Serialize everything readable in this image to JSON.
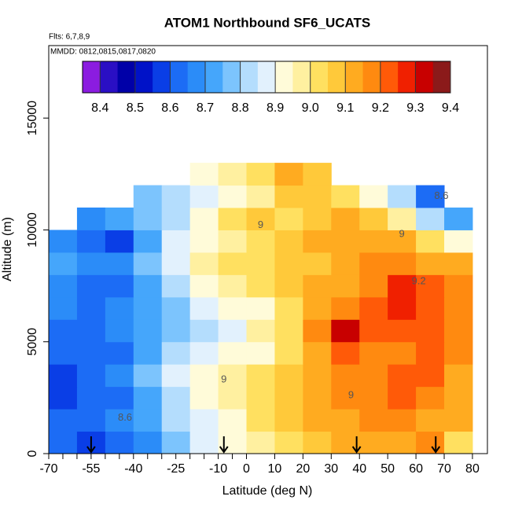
{
  "chart_data": {
    "type": "heatmap",
    "title": "ATOM1 Northbound SF6_UCATS",
    "subtitle": "Flts: 6,7,8,9",
    "annotation": "MMDD: 0812,0815,0817,0820",
    "xlabel": "Latitude (deg N)",
    "ylabel": "Altitude (m)",
    "xlim": [
      -70,
      85.3
    ],
    "ylim": [
      0,
      18240
    ],
    "xticks": [
      -70,
      -55,
      -40,
      -25,
      -10,
      0,
      10,
      20,
      30,
      40,
      50,
      60,
      70,
      80
    ],
    "xminorticks": [
      -65,
      -60,
      -50,
      -45,
      -35,
      -30,
      -20,
      -15,
      -5
    ],
    "yticks": [
      0,
      5000,
      10000,
      15000
    ],
    "x_edges": [
      -70,
      -60,
      -50,
      -40,
      -30,
      -20,
      -10,
      0,
      10,
      20,
      30,
      40,
      50,
      60,
      70,
      80
    ],
    "y_edges": [
      0,
      1000,
      2000,
      3000,
      4000,
      5000,
      6000,
      7000,
      8000,
      9000,
      10000,
      11000,
      12000,
      13000
    ],
    "values": [
      [
        8.6,
        8.55,
        8.6,
        8.65,
        8.75,
        8.85,
        8.9,
        8.95,
        9.0,
        9.05,
        9.1,
        9.1,
        9.1,
        9.15,
        9.0
      ],
      [
        8.6,
        8.6,
        8.65,
        8.7,
        8.8,
        8.85,
        8.9,
        9.0,
        9.05,
        9.1,
        9.1,
        9.15,
        9.15,
        9.1,
        9.1
      ],
      [
        8.55,
        8.6,
        8.6,
        8.7,
        8.8,
        8.9,
        8.95,
        9.0,
        9.05,
        9.1,
        9.15,
        9.15,
        9.2,
        9.15,
        9.1
      ],
      [
        8.55,
        8.6,
        8.65,
        8.75,
        8.85,
        8.9,
        8.95,
        9.0,
        9.05,
        9.1,
        9.15,
        9.15,
        9.2,
        9.2,
        9.1
      ],
      [
        8.6,
        8.6,
        8.6,
        8.7,
        8.8,
        8.85,
        8.9,
        8.9,
        9.0,
        9.1,
        9.2,
        9.15,
        9.15,
        9.2,
        9.15
      ],
      [
        8.6,
        8.6,
        8.65,
        8.7,
        8.75,
        8.8,
        8.85,
        8.95,
        9.0,
        9.15,
        9.3,
        9.2,
        9.2,
        9.2,
        9.15
      ],
      [
        8.65,
        8.6,
        8.65,
        8.7,
        8.75,
        8.85,
        8.9,
        8.9,
        9.0,
        9.1,
        9.15,
        9.2,
        9.25,
        9.2,
        9.15
      ],
      [
        8.65,
        8.6,
        8.6,
        8.7,
        8.8,
        8.9,
        8.95,
        9.0,
        9.05,
        9.1,
        9.1,
        9.15,
        9.25,
        9.2,
        9.15
      ],
      [
        8.7,
        8.65,
        8.65,
        8.75,
        8.85,
        8.95,
        9.0,
        9.0,
        9.05,
        9.05,
        9.1,
        9.15,
        9.15,
        9.1,
        9.1
      ],
      [
        8.65,
        8.6,
        8.55,
        8.7,
        8.85,
        8.9,
        8.95,
        9.0,
        9.05,
        9.1,
        9.1,
        9.1,
        9.1,
        9.0,
        8.9
      ],
      [
        null,
        8.65,
        8.7,
        8.75,
        8.8,
        8.9,
        9.0,
        9.05,
        9.0,
        9.05,
        9.1,
        9.05,
        8.95,
        8.8,
        8.7
      ],
      [
        null,
        null,
        null,
        8.75,
        8.8,
        8.85,
        8.9,
        8.95,
        9.05,
        9.05,
        9.0,
        8.9,
        8.8,
        8.6,
        null
      ],
      [
        null,
        null,
        null,
        null,
        null,
        8.9,
        8.95,
        9.0,
        9.1,
        9.05,
        null,
        null,
        null,
        null,
        null
      ]
    ],
    "colorbar": {
      "lim": [
        8.35,
        9.4
      ],
      "ticks": [
        8.4,
        8.5,
        8.6,
        8.7,
        8.8,
        8.9,
        {
          "value": 9,
          "label": "9.0"
        },
        9.1,
        9.2,
        9.3,
        9.4
      ],
      "colors": [
        "#8b1ce0",
        "#2a0fc4",
        "#0000a8",
        "#0012c8",
        "#0a3ee6",
        "#1c6cf5",
        "#2b8cf8",
        "#45a6fb",
        "#7cc4fd",
        "#b4ddfd",
        "#e2f1fd",
        "#fffbd9",
        "#fff0a0",
        "#ffe060",
        "#ffc93a",
        "#ffab20",
        "#ff8a10",
        "#ff5a08",
        "#f02000",
        "#c80000",
        "#8b1a1a"
      ]
    },
    "contour_labels": [
      {
        "text": "9",
        "x": 5,
        "y": 10200
      },
      {
        "text": "9",
        "x": 55,
        "y": 9800
      },
      {
        "text": "9.2",
        "x": 61,
        "y": 7700
      },
      {
        "text": "8.6",
        "x": -43,
        "y": 1600
      },
      {
        "text": "8.6",
        "x": 69,
        "y": 11500
      },
      {
        "text": "9",
        "x": 37,
        "y": 2600
      },
      {
        "text": "9",
        "x": -8,
        "y": 3300
      }
    ],
    "arrows": [
      -55,
      -8,
      39,
      67
    ]
  }
}
